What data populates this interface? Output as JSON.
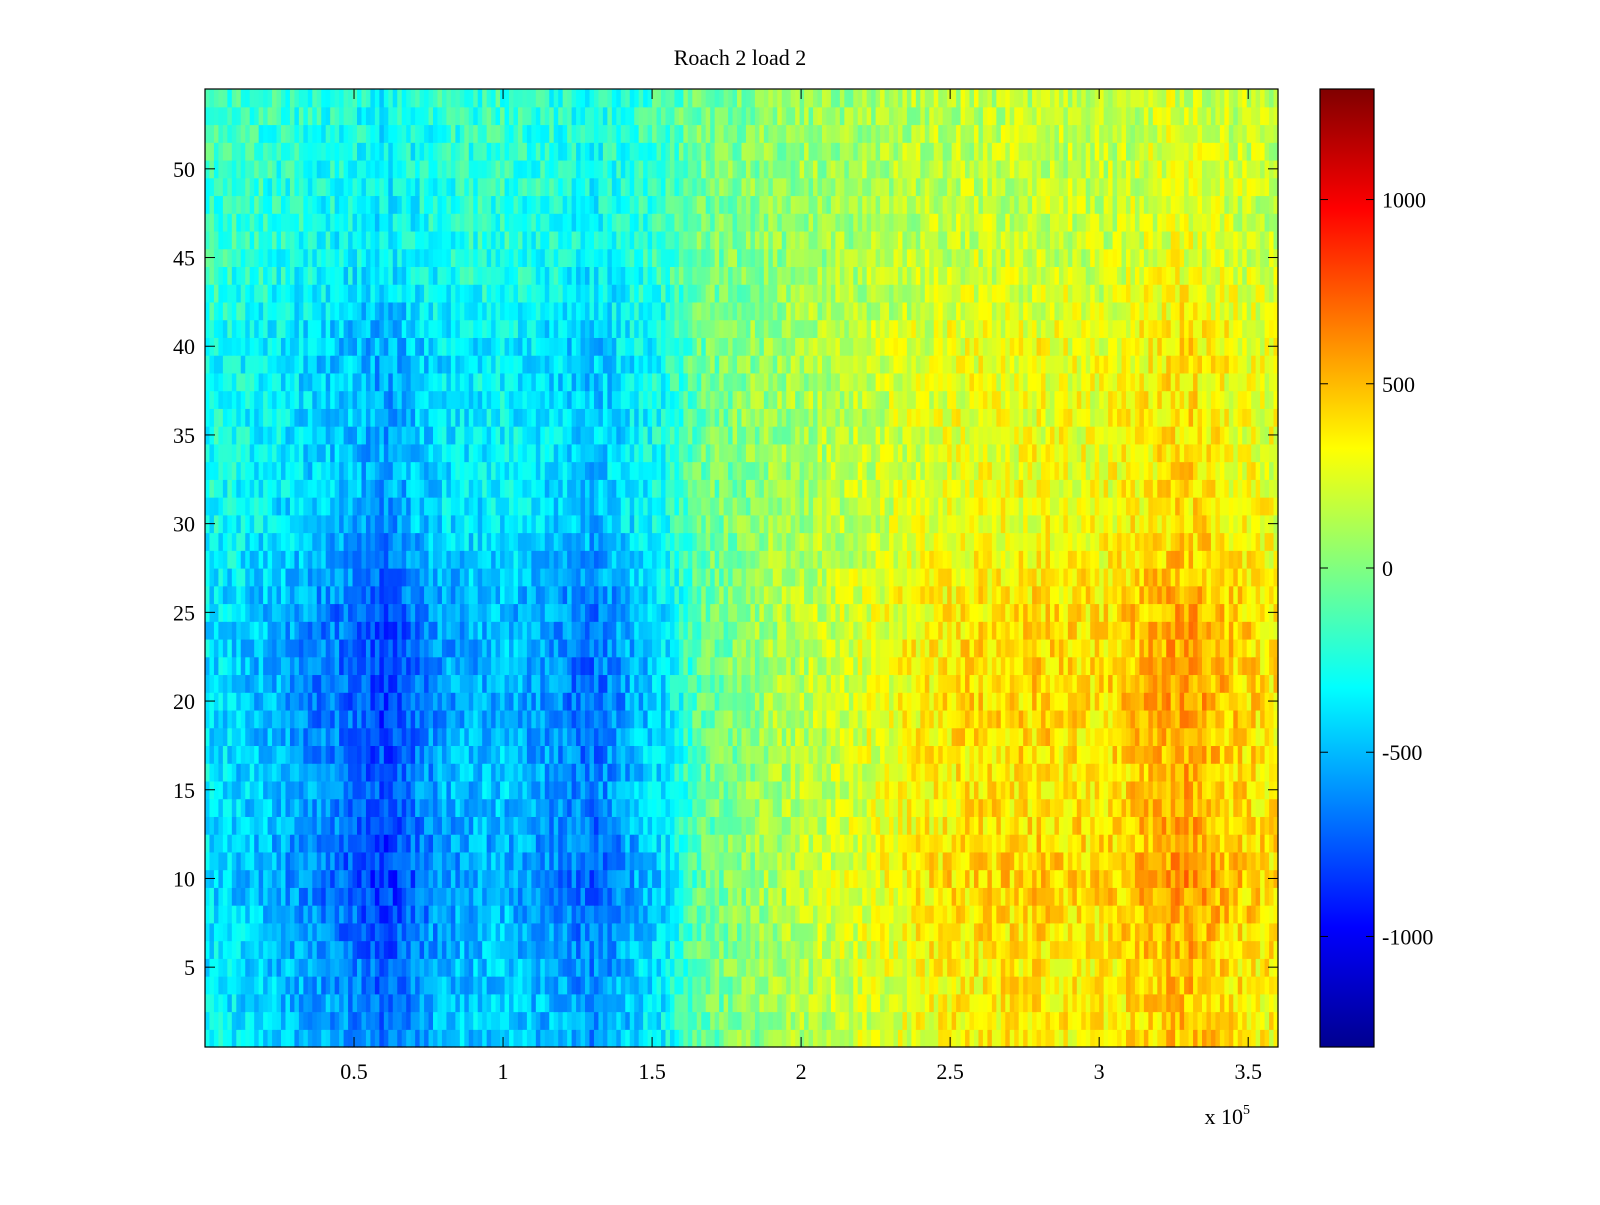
{
  "chart_data": {
    "type": "heatmap",
    "title": "Roach 2 load 2",
    "xlabel": "",
    "ylabel": "",
    "x_exponent_label": {
      "base": "x 10",
      "exponent": "5"
    },
    "xlim": [
      0,
      3.6
    ],
    "ylim": [
      0.5,
      54.5
    ],
    "x_ticks": [
      0.5,
      1,
      1.5,
      2,
      2.5,
      3,
      3.5
    ],
    "x_tick_labels": [
      "0.5",
      "1",
      "1.5",
      "2",
      "2.5",
      "3",
      "3.5"
    ],
    "y_ticks": [
      5,
      10,
      15,
      20,
      25,
      30,
      35,
      40,
      45,
      50
    ],
    "y_tick_labels": [
      "5",
      "10",
      "15",
      "20",
      "25",
      "30",
      "35",
      "40",
      "45",
      "50"
    ],
    "rows": 54,
    "grid": false,
    "colormap": "jet",
    "colorbar": {
      "clim": [
        -1300,
        1300
      ],
      "ticks": [
        -1000,
        -500,
        0,
        500,
        1000
      ],
      "tick_labels": [
        "-1000",
        "-500",
        "0",
        "500",
        "1000"
      ],
      "placement": "right"
    },
    "column_profile": {
      "x": [
        0,
        0.2,
        0.35,
        0.5,
        0.6,
        0.8,
        1.0,
        1.2,
        1.3,
        1.45,
        1.55,
        1.65,
        1.9,
        2.2,
        2.5,
        2.8,
        3.0,
        3.2,
        3.3,
        3.45,
        3.6
      ],
      "values": [
        -330,
        -420,
        -520,
        -600,
        -700,
        -480,
        -420,
        -520,
        -600,
        -430,
        -330,
        -80,
        80,
        200,
        330,
        360,
        330,
        440,
        490,
        380,
        320
      ]
    },
    "row_profile": {
      "y": [
        1,
        5,
        10,
        15,
        20,
        25,
        30,
        35,
        40,
        45,
        50,
        54
      ],
      "values": [
        1.0,
        1.05,
        1.25,
        1.1,
        1.2,
        1.15,
        0.85,
        0.8,
        0.8,
        0.55,
        0.5,
        0.45
      ]
    }
  }
}
